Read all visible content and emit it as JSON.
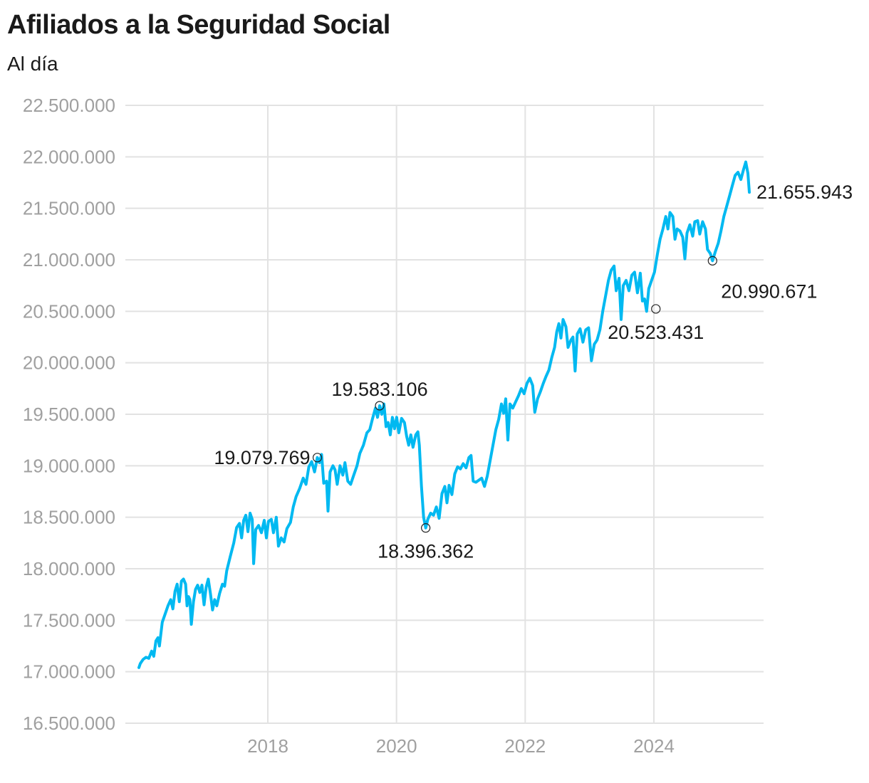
{
  "chart_data": {
    "type": "line",
    "title": "Afiliados a la Seguridad Social",
    "subtitle": "Al día",
    "xlabel": "",
    "ylabel": "",
    "ylim": [
      16500000,
      22500000
    ],
    "xlim": [
      2015.55,
      2025.47
    ],
    "grid": true,
    "legend": "none",
    "series_color": "#00b9f1",
    "y_ticks": [
      {
        "value": 22500000,
        "label": "22.500.000"
      },
      {
        "value": 22000000,
        "label": "22.000.000"
      },
      {
        "value": 21500000,
        "label": "21.500.000"
      },
      {
        "value": 21000000,
        "label": "21.000.000"
      },
      {
        "value": 20500000,
        "label": "20.500.000"
      },
      {
        "value": 20000000,
        "label": "20.000.000"
      },
      {
        "value": 19500000,
        "label": "19.500.000"
      },
      {
        "value": 19000000,
        "label": "19.000.000"
      },
      {
        "value": 18500000,
        "label": "18.500.000"
      },
      {
        "value": 18000000,
        "label": "18.000.000"
      },
      {
        "value": 17500000,
        "label": "17.500.000"
      },
      {
        "value": 17000000,
        "label": "17.000.000"
      },
      {
        "value": 16500000,
        "label": "16.500.000"
      }
    ],
    "x_ticks": [
      {
        "value": 2018,
        "label": "2018"
      },
      {
        "value": 2020,
        "label": "2020"
      },
      {
        "value": 2022,
        "label": "2022"
      },
      {
        "value": 2024,
        "label": "2024"
      }
    ],
    "series": [
      {
        "name": "Afiliados",
        "points": [
          [
            2015.76,
            17040000
          ],
          [
            2015.78,
            17080000
          ],
          [
            2015.82,
            17120000
          ],
          [
            2015.86,
            17140000
          ],
          [
            2015.9,
            17130000
          ],
          [
            2015.94,
            17200000
          ],
          [
            2015.97,
            17150000
          ],
          [
            2016.0,
            17300000
          ],
          [
            2016.03,
            17330000
          ],
          [
            2016.05,
            17250000
          ],
          [
            2016.09,
            17480000
          ],
          [
            2016.13,
            17560000
          ],
          [
            2016.17,
            17640000
          ],
          [
            2016.21,
            17700000
          ],
          [
            2016.24,
            17610000
          ],
          [
            2016.27,
            17780000
          ],
          [
            2016.3,
            17850000
          ],
          [
            2016.33,
            17680000
          ],
          [
            2016.36,
            17880000
          ],
          [
            2016.39,
            17900000
          ],
          [
            2016.42,
            17850000
          ],
          [
            2016.44,
            17640000
          ],
          [
            2016.46,
            17730000
          ],
          [
            2016.48,
            17700000
          ],
          [
            2016.5,
            17460000
          ],
          [
            2016.53,
            17680000
          ],
          [
            2016.56,
            17800000
          ],
          [
            2016.59,
            17840000
          ],
          [
            2016.62,
            17770000
          ],
          [
            2016.65,
            17840000
          ],
          [
            2016.68,
            17650000
          ],
          [
            2016.71,
            17820000
          ],
          [
            2016.74,
            17900000
          ],
          [
            2016.77,
            17760000
          ],
          [
            2016.8,
            17600000
          ],
          [
            2016.83,
            17700000
          ],
          [
            2016.86,
            17640000
          ],
          [
            2016.9,
            17760000
          ],
          [
            2016.94,
            17850000
          ],
          [
            2016.97,
            17830000
          ],
          [
            2017.0,
            17980000
          ],
          [
            2017.05,
            18120000
          ],
          [
            2017.1,
            18250000
          ],
          [
            2017.14,
            18400000
          ],
          [
            2017.18,
            18440000
          ],
          [
            2017.21,
            18300000
          ],
          [
            2017.24,
            18470000
          ],
          [
            2017.27,
            18520000
          ],
          [
            2017.3,
            18360000
          ],
          [
            2017.33,
            18540000
          ],
          [
            2017.36,
            18480000
          ],
          [
            2017.38,
            18050000
          ],
          [
            2017.41,
            18380000
          ],
          [
            2017.45,
            18420000
          ],
          [
            2017.49,
            18350000
          ],
          [
            2017.53,
            18470000
          ],
          [
            2017.56,
            18300000
          ],
          [
            2017.59,
            18460000
          ],
          [
            2017.63,
            18480000
          ],
          [
            2017.66,
            18350000
          ],
          [
            2017.7,
            18500000
          ],
          [
            2017.73,
            18220000
          ],
          [
            2017.77,
            18300000
          ],
          [
            2017.81,
            18260000
          ],
          [
            2017.85,
            18390000
          ],
          [
            2017.9,
            18450000
          ],
          [
            2017.94,
            18600000
          ],
          [
            2017.98,
            18700000
          ],
          [
            2018.03,
            18780000
          ],
          [
            2018.08,
            18880000
          ],
          [
            2018.12,
            18820000
          ],
          [
            2018.16,
            18990000
          ],
          [
            2018.2,
            19040000
          ],
          [
            2018.24,
            18940000
          ],
          [
            2018.28,
            19080000
          ],
          [
            2018.31,
            19030000
          ],
          [
            2018.34,
            19110000
          ],
          [
            2018.37,
            18830000
          ],
          [
            2018.41,
            18850000
          ],
          [
            2018.43,
            18560000
          ],
          [
            2018.46,
            18940000
          ],
          [
            2018.5,
            19000000
          ],
          [
            2018.53,
            18960000
          ],
          [
            2018.56,
            18820000
          ],
          [
            2018.6,
            19000000
          ],
          [
            2018.64,
            18910000
          ],
          [
            2018.67,
            19030000
          ],
          [
            2018.71,
            18850000
          ],
          [
            2018.75,
            18820000
          ],
          [
            2018.79,
            18900000
          ],
          [
            2018.84,
            19000000
          ],
          [
            2018.88,
            19120000
          ],
          [
            2018.93,
            19200000
          ],
          [
            2018.98,
            19320000
          ],
          [
            2019.02,
            19350000
          ],
          [
            2019.06,
            19460000
          ],
          [
            2019.1,
            19560000
          ],
          [
            2019.13,
            19470000
          ],
          [
            2019.16,
            19583106
          ],
          [
            2019.19,
            19500000
          ],
          [
            2019.22,
            19600000
          ],
          [
            2019.25,
            19380000
          ],
          [
            2019.28,
            19420000
          ],
          [
            2019.31,
            19300000
          ],
          [
            2019.34,
            19470000
          ],
          [
            2019.37,
            19360000
          ],
          [
            2019.4,
            19470000
          ],
          [
            2019.43,
            19320000
          ],
          [
            2019.47,
            19460000
          ],
          [
            2019.51,
            19420000
          ],
          [
            2019.54,
            19290000
          ],
          [
            2019.57,
            19200000
          ],
          [
            2019.6,
            19300000
          ],
          [
            2019.63,
            19180000
          ],
          [
            2019.67,
            19300000
          ],
          [
            2019.7,
            19330000
          ],
          [
            2019.72,
            19200000
          ],
          [
            2019.75,
            18800000
          ],
          [
            2019.78,
            18500000
          ],
          [
            2019.81,
            18396362
          ],
          [
            2019.84,
            18480000
          ],
          [
            2019.88,
            18540000
          ],
          [
            2019.92,
            18520000
          ],
          [
            2019.96,
            18600000
          ],
          [
            2020.0,
            18490000
          ],
          [
            2020.04,
            18730000
          ],
          [
            2020.08,
            18800000
          ],
          [
            2020.11,
            18640000
          ],
          [
            2020.14,
            18810000
          ],
          [
            2020.18,
            18720000
          ],
          [
            2020.22,
            18920000
          ],
          [
            2020.26,
            18990000
          ],
          [
            2020.3,
            18970000
          ],
          [
            2020.34,
            19020000
          ],
          [
            2020.38,
            18980000
          ],
          [
            2020.42,
            19080000
          ],
          [
            2020.45,
            19100000
          ],
          [
            2020.48,
            18850000
          ],
          [
            2020.52,
            18840000
          ],
          [
            2020.56,
            18860000
          ],
          [
            2020.6,
            18880000
          ],
          [
            2020.64,
            18800000
          ],
          [
            2020.68,
            18900000
          ],
          [
            2020.72,
            19050000
          ],
          [
            2020.76,
            19200000
          ],
          [
            2020.8,
            19350000
          ],
          [
            2020.84,
            19450000
          ],
          [
            2020.88,
            19600000
          ],
          [
            2020.91,
            19510000
          ],
          [
            2020.94,
            19650000
          ],
          [
            2020.97,
            19250000
          ],
          [
            2021.0,
            19600000
          ],
          [
            2021.04,
            19560000
          ],
          [
            2021.08,
            19620000
          ],
          [
            2021.12,
            19680000
          ],
          [
            2021.16,
            19750000
          ],
          [
            2021.2,
            19700000
          ],
          [
            2021.24,
            19800000
          ],
          [
            2021.28,
            19850000
          ],
          [
            2021.32,
            19780000
          ],
          [
            2021.35,
            19520000
          ],
          [
            2021.39,
            19650000
          ],
          [
            2021.43,
            19720000
          ],
          [
            2021.47,
            19800000
          ],
          [
            2021.51,
            19870000
          ],
          [
            2021.55,
            19930000
          ],
          [
            2021.59,
            20050000
          ],
          [
            2021.63,
            20150000
          ],
          [
            2021.66,
            20300000
          ],
          [
            2021.69,
            20380000
          ],
          [
            2021.72,
            20240000
          ],
          [
            2021.75,
            20420000
          ],
          [
            2021.79,
            20350000
          ],
          [
            2021.82,
            20150000
          ],
          [
            2021.86,
            20220000
          ],
          [
            2021.89,
            20250000
          ],
          [
            2021.92,
            19920000
          ],
          [
            2021.95,
            20280000
          ],
          [
            2021.99,
            20330000
          ],
          [
            2022.03,
            20200000
          ],
          [
            2022.07,
            20320000
          ],
          [
            2022.11,
            20340000
          ],
          [
            2022.15,
            20020000
          ],
          [
            2022.19,
            20180000
          ],
          [
            2022.23,
            20220000
          ],
          [
            2022.27,
            20320000
          ],
          [
            2022.31,
            20500000
          ],
          [
            2022.35,
            20650000
          ],
          [
            2022.39,
            20800000
          ],
          [
            2022.43,
            20900000
          ],
          [
            2022.47,
            20940000
          ],
          [
            2022.5,
            20700000
          ],
          [
            2022.54,
            20820000
          ],
          [
            2022.57,
            20420000
          ],
          [
            2022.6,
            20750000
          ],
          [
            2022.64,
            20800000
          ],
          [
            2022.68,
            20700000
          ],
          [
            2022.72,
            20850000
          ],
          [
            2022.76,
            20880000
          ],
          [
            2022.8,
            20680000
          ],
          [
            2022.84,
            20870000
          ],
          [
            2022.87,
            20600000
          ],
          [
            2022.9,
            20620000
          ],
          [
            2022.93,
            20500000
          ],
          [
            2022.96,
            20720000
          ],
          [
            2023.0,
            20800000
          ],
          [
            2023.04,
            20880000
          ],
          [
            2023.08,
            21050000
          ],
          [
            2023.12,
            21200000
          ],
          [
            2023.16,
            21300000
          ],
          [
            2023.2,
            21420000
          ],
          [
            2023.23,
            21300000
          ],
          [
            2023.26,
            21460000
          ],
          [
            2023.3,
            21420000
          ],
          [
            2023.33,
            21200000
          ],
          [
            2023.36,
            21300000
          ],
          [
            2023.4,
            21280000
          ],
          [
            2023.44,
            21220000
          ],
          [
            2023.47,
            21010000
          ],
          [
            2023.5,
            21260000
          ],
          [
            2023.54,
            21340000
          ],
          [
            2023.58,
            21230000
          ],
          [
            2023.61,
            21370000
          ],
          [
            2023.65,
            21380000
          ],
          [
            2023.68,
            21250000
          ],
          [
            2023.72,
            21370000
          ],
          [
            2023.76,
            21300000
          ],
          [
            2023.79,
            21100000
          ],
          [
            2023.83,
            21060000
          ],
          [
            2023.86,
            20990671
          ],
          [
            2023.9,
            21080000
          ],
          [
            2023.94,
            21160000
          ],
          [
            2023.98,
            21280000
          ],
          [
            2024.02,
            21420000
          ],
          [
            2024.06,
            21520000
          ],
          [
            2024.1,
            21620000
          ],
          [
            2024.14,
            21720000
          ],
          [
            2024.18,
            21820000
          ],
          [
            2024.22,
            21850000
          ],
          [
            2024.26,
            21780000
          ],
          [
            2024.3,
            21880000
          ],
          [
            2024.33,
            21950000
          ],
          [
            2024.36,
            21840000
          ],
          [
            2024.38,
            21655943
          ]
        ]
      }
    ],
    "annotations": [
      {
        "x": 2018.28,
        "y": 19079769,
        "label": "19.079.769",
        "position": "left"
      },
      {
        "x": 2019.16,
        "y": 19583106,
        "label": "19.583.106",
        "position": "top"
      },
      {
        "x": 2019.81,
        "y": 18396362,
        "label": "18.396.362",
        "position": "bottom"
      },
      {
        "x": 2023.06,
        "y": 20523431,
        "label": "20.523.431",
        "position": "bottom"
      },
      {
        "x": 2023.86,
        "y": 20990671,
        "label": "20.990.671",
        "position": "bottom-right"
      },
      {
        "x": 2024.38,
        "y": 21655943,
        "label": "21.655.943",
        "position": "right",
        "endpoint": true
      }
    ]
  }
}
